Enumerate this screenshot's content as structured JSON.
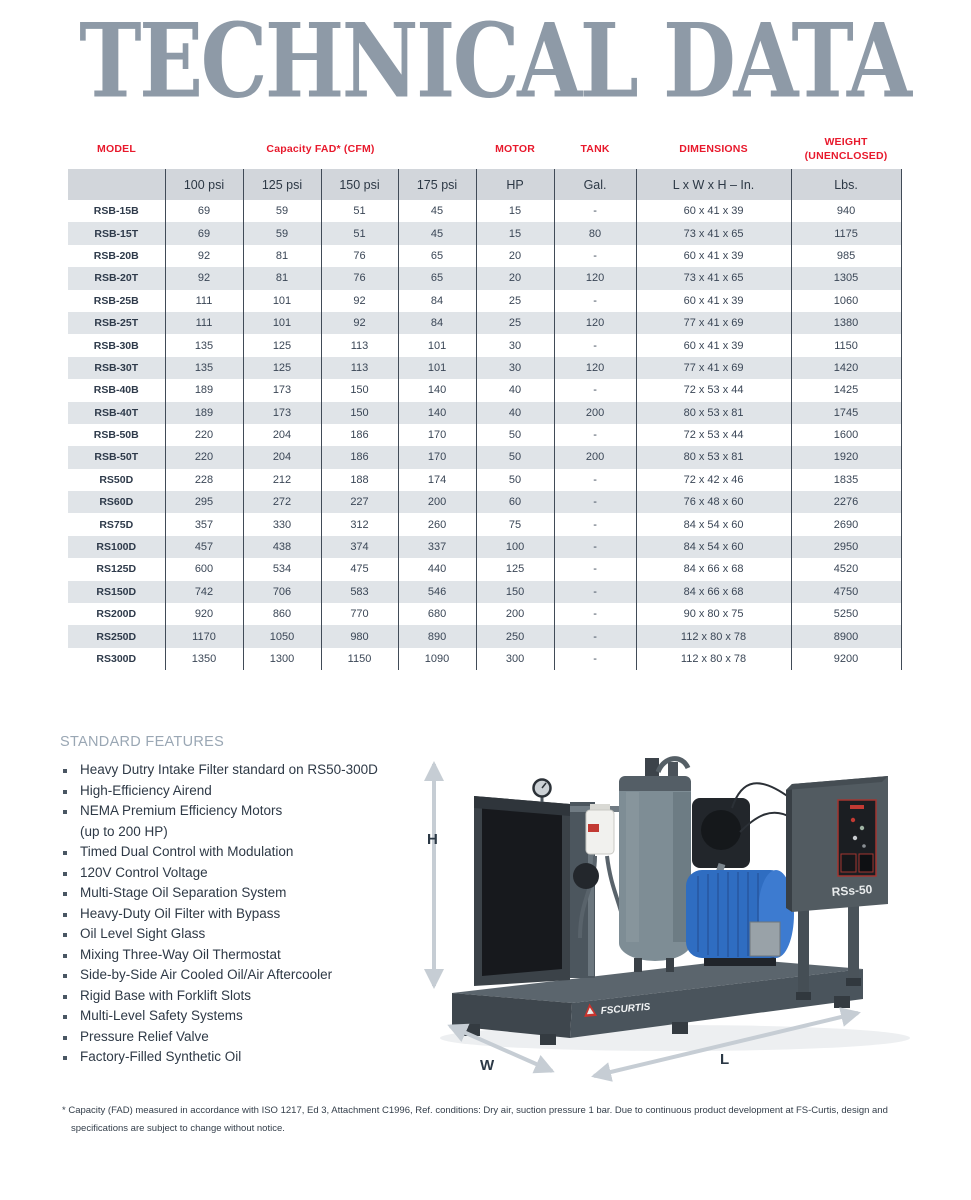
{
  "page": {
    "title": "TECHNICAL DATA"
  },
  "table": {
    "group_headers": [
      "MODEL",
      "Capacity FAD* (CFM)",
      "MOTOR",
      "TANK",
      "DIMENSIONS",
      "WEIGHT\n(UNENCLOSED)"
    ],
    "sub_headers": [
      "",
      "100 psi",
      "125 psi",
      "150 psi",
      "175 psi",
      "HP",
      "Gal.",
      "L x W x H – In.",
      "Lbs."
    ],
    "rows": [
      {
        "model": "RSB-15B",
        "values": [
          "69",
          "59",
          "51",
          "45",
          "15",
          "-",
          "60 x 41 x 39",
          "940"
        ]
      },
      {
        "model": "RSB-15T",
        "values": [
          "69",
          "59",
          "51",
          "45",
          "15",
          "80",
          "73 x 41 x 65",
          "1175"
        ]
      },
      {
        "model": "RSB-20B",
        "values": [
          "92",
          "81",
          "76",
          "65",
          "20",
          "-",
          "60 x 41 x 39",
          "985"
        ]
      },
      {
        "model": "RSB-20T",
        "values": [
          "92",
          "81",
          "76",
          "65",
          "20",
          "120",
          "73 x 41 x 65",
          "1305"
        ]
      },
      {
        "model": "RSB-25B",
        "values": [
          "111",
          "101",
          "92",
          "84",
          "25",
          "-",
          "60 x 41 x 39",
          "1060"
        ]
      },
      {
        "model": "RSB-25T",
        "values": [
          "111",
          "101",
          "92",
          "84",
          "25",
          "120",
          "77 x 41 x 69",
          "1380"
        ]
      },
      {
        "model": "RSB-30B",
        "values": [
          "135",
          "125",
          "113",
          "101",
          "30",
          "-",
          "60 x 41 x 39",
          "1150"
        ]
      },
      {
        "model": "RSB-30T",
        "values": [
          "135",
          "125",
          "113",
          "101",
          "30",
          "120",
          "77 x 41 x 69",
          "1420"
        ]
      },
      {
        "model": "RSB-40B",
        "values": [
          "189",
          "173",
          "150",
          "140",
          "40",
          "-",
          "72 x 53 x 44",
          "1425"
        ]
      },
      {
        "model": "RSB-40T",
        "values": [
          "189",
          "173",
          "150",
          "140",
          "40",
          "200",
          "80 x 53 x 81",
          "1745"
        ]
      },
      {
        "model": "RSB-50B",
        "values": [
          "220",
          "204",
          "186",
          "170",
          "50",
          "-",
          "72 x 53 x 44",
          "1600"
        ]
      },
      {
        "model": "RSB-50T",
        "values": [
          "220",
          "204",
          "186",
          "170",
          "50",
          "200",
          "80 x 53 x 81",
          "1920"
        ]
      },
      {
        "model": "RS50D",
        "values": [
          "228",
          "212",
          "188",
          "174",
          "50",
          "-",
          "72 x 42 x 46",
          "1835"
        ]
      },
      {
        "model": "RS60D",
        "values": [
          "295",
          "272",
          "227",
          "200",
          "60",
          "-",
          "76 x 48 x 60",
          "2276"
        ]
      },
      {
        "model": "RS75D",
        "values": [
          "357",
          "330",
          "312",
          "260",
          "75",
          "-",
          "84 x 54 x 60",
          "2690"
        ]
      },
      {
        "model": "RS100D",
        "values": [
          "457",
          "438",
          "374",
          "337",
          "100",
          "-",
          "84 x 54 x 60",
          "2950"
        ]
      },
      {
        "model": "RS125D",
        "values": [
          "600",
          "534",
          "475",
          "440",
          "125",
          "-",
          "84 x 66 x 68",
          "4520"
        ]
      },
      {
        "model": "RS150D",
        "values": [
          "742",
          "706",
          "583",
          "546",
          "150",
          "-",
          "84 x 66 x 68",
          "4750"
        ]
      },
      {
        "model": "RS200D",
        "values": [
          "920",
          "860",
          "770",
          "680",
          "200",
          "-",
          "90 x 80 x 75",
          "5250"
        ]
      },
      {
        "model": "RS250D",
        "values": [
          "1170",
          "1050",
          "980",
          "890",
          "250",
          "-",
          "112 x 80 x 78",
          "8900"
        ]
      },
      {
        "model": "RS300D",
        "values": [
          "1350",
          "1300",
          "1150",
          "1090",
          "300",
          "-",
          "112 x 80 x 78",
          "9200"
        ]
      }
    ]
  },
  "features": {
    "heading": "STANDARD FEATURES",
    "items": [
      "Heavy Dutry Intake Filter standard on RS50-300D",
      "High-Efficiency Airend",
      "NEMA Premium Efficiency Motors\n(up to 200 HP)",
      "Timed Dual Control with Modulation",
      "120V Control Voltage",
      "Multi-Stage Oil Separation System",
      "Heavy-Duty Oil Filter with Bypass",
      "Oil Level Sight Glass",
      "Mixing Three-Way Oil Thermostat",
      "Side-by-Side Air Cooled Oil/Air Aftercooler",
      "Rigid Base with Forklift Slots",
      "Multi-Level Safety Systems",
      "Pressure Relief Valve",
      "Factory-Filled Synthetic Oil"
    ]
  },
  "figure": {
    "h_label": "H",
    "w_label": "W",
    "l_label": "L",
    "model_label": "RSs-50",
    "brand": "FSCURTIS"
  },
  "footnote": "* Capacity (FAD) measured in accordance with ISO 1217, Ed 3, Attachment C1996, Ref. conditions: Dry air, suction pressure 1 bar. Due to continuous product development at FS-Curtis, design and specifications are subject to change without notice.",
  "colors": {
    "accent_red": "#e8192c",
    "title_gray": "#8e9aa7",
    "navy_text": "#3a4656",
    "row_stripe": "#e0e4e8",
    "subheader_bg": "#d2d6db",
    "arrow_gray": "#c6cdd4"
  }
}
